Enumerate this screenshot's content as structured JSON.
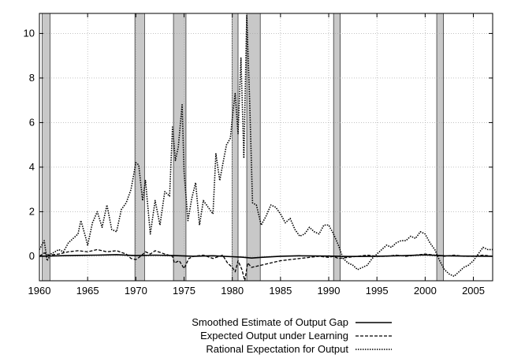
{
  "chart_data": {
    "type": "line",
    "title": "",
    "xlabel": "",
    "ylabel": "",
    "xlim": [
      1960,
      2007
    ],
    "ylim": [
      -1.1,
      10.9
    ],
    "x_ticks": [
      1960,
      1965,
      1970,
      1975,
      1980,
      1985,
      1990,
      1995,
      2000,
      2005
    ],
    "y_ticks": [
      0,
      2,
      4,
      6,
      8,
      10
    ],
    "grid": true,
    "legend_position": "bottom-center",
    "recession_bands": [
      [
        1960.3,
        1961.1
      ],
      [
        1969.9,
        1970.9
      ],
      [
        1973.9,
        1975.2
      ],
      [
        1980.0,
        1980.6
      ],
      [
        1981.5,
        1982.9
      ],
      [
        1990.5,
        1991.2
      ],
      [
        2001.2,
        2001.9
      ]
    ],
    "series": [
      {
        "name": "Smoothed Estimate of Output Gap",
        "style": "solid",
        "x": [
          1960,
          1962,
          1964,
          1966,
          1968,
          1970,
          1972,
          1974,
          1976,
          1978,
          1980,
          1981,
          1982,
          1983,
          1985,
          1987,
          1990,
          1992,
          1995,
          1998,
          2000,
          2002,
          2004,
          2007
        ],
        "y": [
          0.0,
          0.02,
          0.04,
          0.05,
          0.07,
          0.03,
          0.05,
          0.03,
          0.0,
          0.02,
          -0.02,
          -0.04,
          -0.08,
          -0.05,
          0.0,
          0.02,
          0.01,
          -0.01,
          0.0,
          0.03,
          0.06,
          0.02,
          0.01,
          0.0
        ]
      },
      {
        "name": "Expected Output under Learning",
        "style": "dashed",
        "x": [
          1960,
          1960.5,
          1961,
          1962,
          1963,
          1964,
          1965,
          1966,
          1967,
          1968,
          1969,
          1969.5,
          1970,
          1970.5,
          1971,
          1971.5,
          1972,
          1973,
          1973.8,
          1974,
          1974.5,
          1975,
          1975.5,
          1976,
          1977,
          1978,
          1979,
          1979.5,
          1980,
          1980.3,
          1980.6,
          1981,
          1981.3,
          1981.6,
          1982,
          1983,
          1984,
          1985,
          1986,
          1987,
          1988,
          1989,
          1990,
          1990.5,
          1991,
          1992,
          1993,
          1994,
          1995,
          1996,
          1997,
          1998,
          1999,
          2000,
          2001,
          2002,
          2003,
          2004,
          2005,
          2006,
          2007
        ],
        "y": [
          0.0,
          0.15,
          0.05,
          0.1,
          0.2,
          0.25,
          0.2,
          0.3,
          0.2,
          0.25,
          0.1,
          -0.1,
          -0.15,
          0.0,
          0.2,
          0.1,
          0.25,
          0.1,
          0.0,
          -0.3,
          -0.2,
          -0.55,
          -0.1,
          0.0,
          0.05,
          -0.1,
          0.05,
          -0.3,
          -0.5,
          -0.7,
          -0.2,
          -0.6,
          -1.1,
          -0.3,
          -0.5,
          -0.4,
          -0.3,
          -0.2,
          -0.15,
          -0.1,
          -0.05,
          0.0,
          -0.05,
          0.0,
          -0.1,
          -0.05,
          0.0,
          0.05,
          0.0,
          0.0,
          0.05,
          0.0,
          0.05,
          0.1,
          0.05,
          0.0,
          0.05,
          0.0,
          0.0,
          0.05,
          0.0
        ]
      },
      {
        "name": "Rational Expectation for Output",
        "style": "dotted",
        "x": [
          1960,
          1960.5,
          1960.8,
          1961.2,
          1962,
          1962.5,
          1963,
          1963.5,
          1964,
          1964.3,
          1964.7,
          1965,
          1965.5,
          1966,
          1966.5,
          1967,
          1967.5,
          1968,
          1968.5,
          1969,
          1969.5,
          1970,
          1970.3,
          1970.7,
          1971,
          1971.5,
          1972,
          1972.5,
          1973,
          1973.5,
          1973.8,
          1974.1,
          1974.4,
          1974.8,
          1975,
          1975.4,
          1975.8,
          1976.2,
          1976.6,
          1977,
          1977.5,
          1978,
          1978.3,
          1978.7,
          1979,
          1979.4,
          1979.8,
          1980.1,
          1980.3,
          1980.6,
          1980.9,
          1981.2,
          1981.5,
          1981.8,
          1982.1,
          1982.5,
          1983,
          1983.5,
          1984,
          1984.5,
          1985,
          1985.5,
          1986,
          1986.5,
          1987,
          1987.5,
          1988,
          1988.5,
          1989,
          1989.5,
          1990,
          1990.5,
          1991,
          1991.5,
          1992,
          1992.5,
          1993,
          1993.5,
          1994,
          1994.5,
          1995,
          1995.5,
          1996,
          1996.5,
          1997,
          1997.5,
          1998,
          1998.5,
          1999,
          1999.5,
          2000,
          2000.5,
          2001,
          2001.5,
          2002,
          2002.5,
          2003,
          2003.5,
          2004,
          2004.5,
          2005,
          2005.5,
          2006,
          2006.5,
          2007
        ],
        "y": [
          0.3,
          0.7,
          -0.2,
          0.1,
          0.3,
          0.2,
          0.6,
          0.8,
          1.0,
          1.6,
          1.0,
          0.5,
          1.5,
          2.0,
          1.3,
          2.3,
          1.2,
          1.1,
          2.1,
          2.4,
          3.0,
          4.2,
          4.1,
          2.5,
          3.4,
          1.0,
          2.5,
          1.4,
          2.9,
          2.7,
          5.8,
          4.3,
          4.9,
          6.8,
          3.8,
          1.6,
          2.6,
          3.3,
          1.4,
          2.5,
          2.2,
          1.9,
          4.6,
          3.4,
          4.1,
          5.0,
          5.3,
          6.6,
          7.3,
          5.5,
          8.9,
          4.4,
          10.8,
          7.0,
          2.4,
          2.3,
          1.4,
          1.8,
          2.3,
          2.2,
          1.9,
          1.5,
          1.7,
          1.2,
          0.9,
          1.0,
          1.3,
          1.1,
          1.0,
          1.4,
          1.4,
          1.0,
          0.5,
          -0.1,
          -0.3,
          -0.4,
          -0.6,
          -0.5,
          -0.4,
          -0.1,
          0.1,
          0.3,
          0.5,
          0.4,
          0.6,
          0.7,
          0.7,
          0.9,
          0.8,
          1.1,
          1.0,
          0.6,
          0.3,
          -0.2,
          -0.6,
          -0.8,
          -0.9,
          -0.7,
          -0.5,
          -0.4,
          -0.2,
          0.1,
          0.4,
          0.3,
          0.3
        ]
      }
    ]
  }
}
